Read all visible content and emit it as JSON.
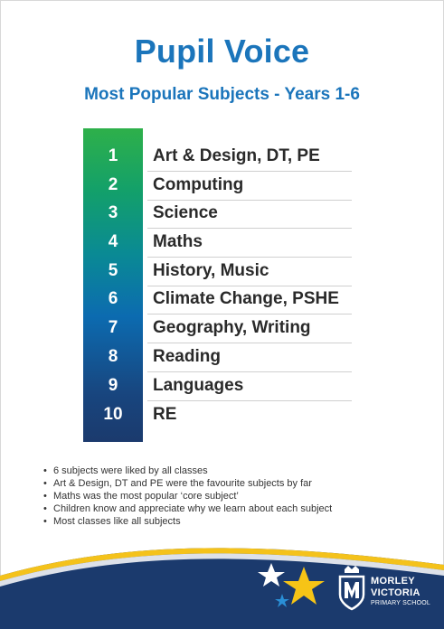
{
  "header": {
    "title": "Pupil Voice",
    "subtitle": "Most Popular Subjects - Years 1-6"
  },
  "rankings": [
    {
      "rank": "1",
      "subject": "Art & Design, DT, PE"
    },
    {
      "rank": "2",
      "subject": "Computing"
    },
    {
      "rank": "3",
      "subject": "Science"
    },
    {
      "rank": "4",
      "subject": "Maths"
    },
    {
      "rank": "5",
      "subject": "History, Music"
    },
    {
      "rank": "6",
      "subject": "Climate Change, PSHE"
    },
    {
      "rank": "7",
      "subject": "Geography, Writing"
    },
    {
      "rank": "8",
      "subject": "Reading"
    },
    {
      "rank": "9",
      "subject": "Languages"
    },
    {
      "rank": "10",
      "subject": "RE"
    }
  ],
  "notes": {
    "bullet": "•",
    "items": [
      "6 subjects were liked by all classes",
      "Art & Design, DT and PE were the favourite subjects by far",
      "Maths was the most popular ‘core subject’",
      "Children know and appreciate why we learn about each subject",
      "Most classes like all subjects"
    ]
  },
  "footer": {
    "school_line1": "MORLEY",
    "school_line2": "VICTORIA",
    "school_line3": "PRIMARY SCHOOL"
  },
  "colors": {
    "title_blue": "#1b75bb",
    "footer_navy": "#1b3a6d",
    "star_yellow": "#f6c416",
    "wave_yellow": "#f4c21b"
  }
}
